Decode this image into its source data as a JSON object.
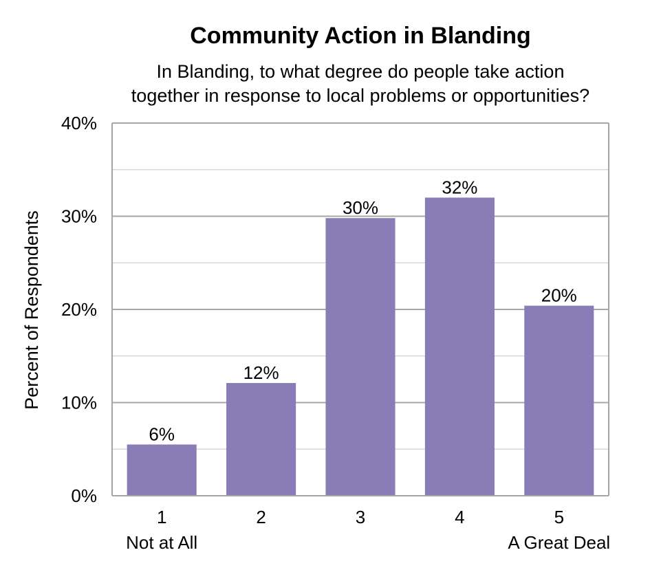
{
  "chart_data": {
    "type": "bar",
    "title": "Community Action in Blanding",
    "subtitle": [
      "In Blanding, to what degree do people take action",
      "together in response to local problems or opportunities?"
    ],
    "xlabel": "",
    "ylabel": "Percent of Respondents",
    "categories": [
      "1",
      "2",
      "3",
      "4",
      "5"
    ],
    "category_sublabels": [
      "Not at All",
      "",
      "",
      "",
      "A Great Deal"
    ],
    "values": [
      5.5,
      12.1,
      29.8,
      32.0,
      20.4
    ],
    "data_labels": [
      "6%",
      "12%",
      "30%",
      "32%",
      "20%"
    ],
    "ylim": [
      0,
      40
    ],
    "yticks": [
      0,
      10,
      20,
      30,
      40
    ],
    "ytick_labels": [
      "0%",
      "10%",
      "20%",
      "30%",
      "40%"
    ],
    "minor_gridlines": [
      5,
      15,
      25,
      35
    ],
    "grid": true,
    "bar_color": "#8a7cb6",
    "grid_color": "#a6a6a6"
  }
}
